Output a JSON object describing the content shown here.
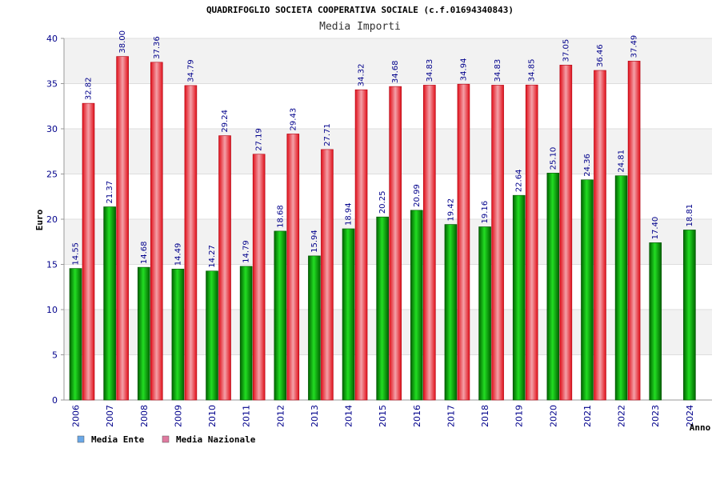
{
  "chart_data": {
    "type": "bar",
    "title": "QUADRIFOGLIO SOCIETA COOPERATIVA SOCIALE (c.f.01694340843)",
    "subtitle": "Media Importi",
    "xlabel": "Anno",
    "ylabel": "Euro",
    "ylim": [
      0,
      40
    ],
    "yticks": [
      0,
      5,
      10,
      15,
      20,
      25,
      30,
      35,
      40
    ],
    "categories": [
      "2006",
      "2007",
      "2008",
      "2009",
      "2010",
      "2011",
      "2012",
      "2013",
      "2014",
      "2015",
      "2016",
      "2017",
      "2018",
      "2019",
      "2020",
      "2021",
      "2022",
      "2023",
      "2024"
    ],
    "series": [
      {
        "name": "Media Ente",
        "color": "#00b000",
        "values": [
          14.55,
          21.37,
          14.68,
          14.49,
          14.27,
          14.79,
          18.68,
          15.94,
          18.94,
          20.25,
          20.99,
          19.42,
          19.16,
          22.64,
          25.1,
          24.36,
          24.81,
          17.4,
          18.81
        ],
        "labels": [
          "14.55",
          "21.37",
          "14.68",
          "14.49",
          "14.27",
          "14.79",
          "18.68",
          "15.94",
          "18.94",
          "20.25",
          "20.99",
          "19.42",
          "19.16",
          "22.64",
          "25.10",
          "24.36",
          "24.81",
          "17.40",
          "18.81"
        ]
      },
      {
        "name": "Media Nazionale",
        "color": "#e8202a",
        "values": [
          32.82,
          38.0,
          37.36,
          34.79,
          29.24,
          27.19,
          29.43,
          27.71,
          34.32,
          34.68,
          34.83,
          34.94,
          34.83,
          34.85,
          37.05,
          36.46,
          37.49,
          null,
          null
        ],
        "labels": [
          "32.82",
          "38.00",
          "37.36",
          "34.79",
          "29.24",
          "27.19",
          "29.43",
          "27.71",
          "34.32",
          "34.68",
          "34.83",
          "34.94",
          "34.83",
          "34.85",
          "37.05",
          "36.46",
          "37.49",
          "",
          ""
        ]
      }
    ],
    "legend": [
      {
        "name": "Media Ente",
        "color": "#6aa8e8"
      },
      {
        "name": "Media Nazionale",
        "color": "#e07aa0"
      }
    ],
    "legend_position": "bottom-left",
    "grid": true
  }
}
